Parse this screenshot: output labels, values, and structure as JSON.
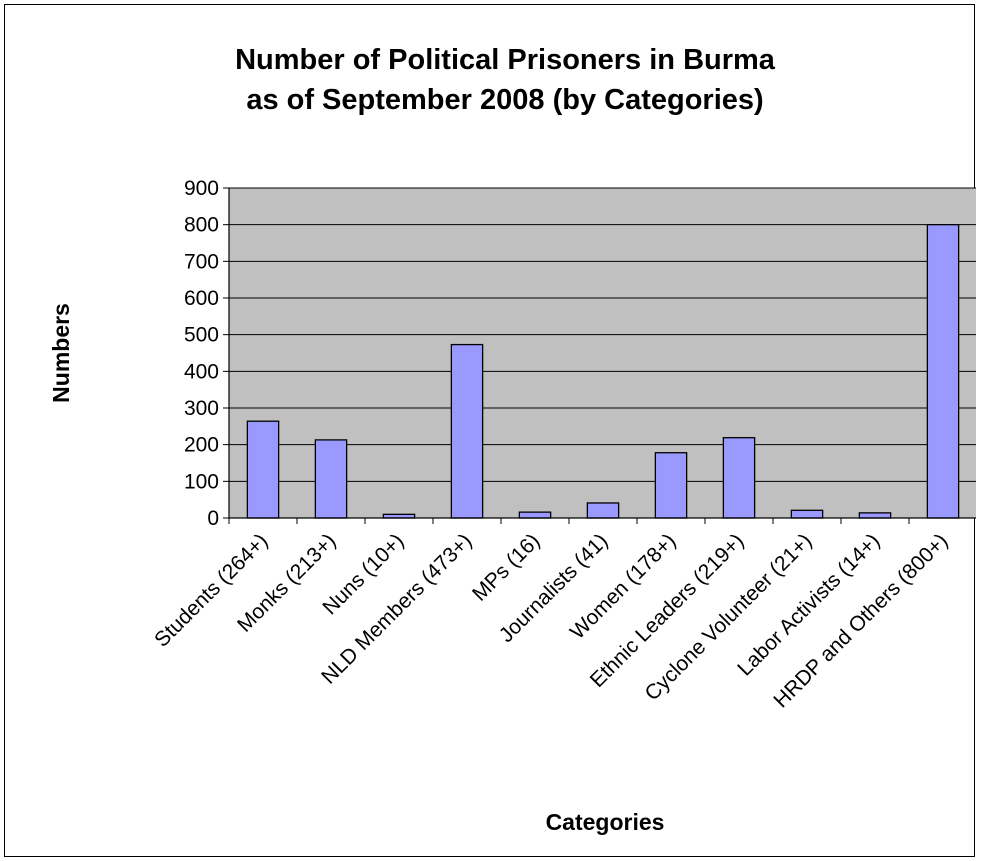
{
  "chart_data": {
    "type": "bar",
    "title": [
      "Number of Political Prisoners in Burma",
      "as of September 2008 (by Categories)"
    ],
    "xlabel": "Categories",
    "ylabel": "Numbers",
    "ylim": [
      0,
      900
    ],
    "yticks": [
      0,
      100,
      200,
      300,
      400,
      500,
      600,
      700,
      800,
      900
    ],
    "categories": [
      "Students (264+)",
      "Monks (213+)",
      "Nuns (10+)",
      "NLD Members (473+)",
      "MPs (16)",
      "Journalists (41)",
      "Women (178+)",
      "Ethnic Leaders (219+)",
      "Cyclone Volunteer (21+)",
      "Labor Activists (14+)",
      "HRDP and Others (800+)"
    ],
    "values": [
      264,
      213,
      10,
      473,
      16,
      41,
      178,
      219,
      21,
      14,
      800
    ],
    "grid": true,
    "legend": "none",
    "colors": {
      "bar_fill": "#9999ff",
      "bar_stroke": "#000000",
      "plot_bg": "#c0c0c0",
      "gridline": "#000000"
    }
  }
}
